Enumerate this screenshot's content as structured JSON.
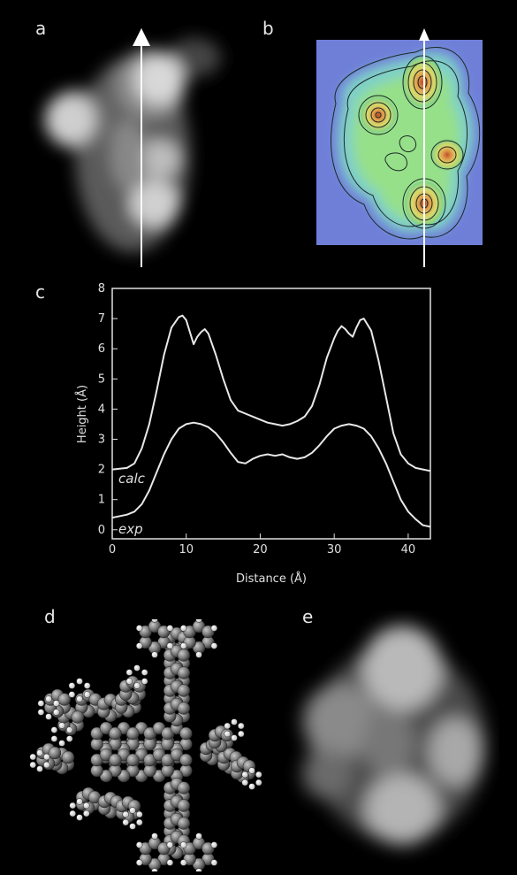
{
  "figure": {
    "panels": {
      "a": "a",
      "b": "b",
      "c": "c",
      "d": "d",
      "e": "e"
    }
  },
  "chart_data": {
    "type": "line",
    "title": "",
    "xlabel": "Distance (Å)",
    "ylabel": "Height (Å)",
    "xlim": [
      0,
      43
    ],
    "ylim": [
      -0.3,
      8
    ],
    "x_ticks": [
      "0",
      "10",
      "20",
      "30",
      "40"
    ],
    "y_ticks": [
      "0",
      "1",
      "2",
      "3",
      "4",
      "5",
      "6",
      "7",
      "8"
    ],
    "grid": false,
    "annotations": [
      "calc",
      "exp"
    ],
    "series": [
      {
        "name": "calc",
        "x": [
          0,
          2,
          3,
          4,
          5,
          6,
          7,
          8,
          9,
          9.5,
          10,
          10.5,
          11,
          11.5,
          12,
          12.5,
          13,
          14,
          15,
          16,
          17,
          18,
          19,
          20,
          21,
          22,
          23,
          24,
          25,
          26,
          27,
          28,
          29,
          30,
          30.5,
          31,
          31.5,
          32,
          32.5,
          33,
          33.5,
          34,
          35,
          36,
          37,
          38,
          39,
          40,
          41,
          42,
          43
        ],
        "values": [
          2.0,
          2.05,
          2.2,
          2.7,
          3.5,
          4.6,
          5.8,
          6.7,
          7.05,
          7.1,
          6.95,
          6.55,
          6.15,
          6.4,
          6.55,
          6.65,
          6.5,
          5.8,
          5.0,
          4.3,
          3.95,
          3.85,
          3.75,
          3.65,
          3.55,
          3.5,
          3.45,
          3.5,
          3.6,
          3.75,
          4.1,
          4.8,
          5.7,
          6.35,
          6.6,
          6.75,
          6.65,
          6.5,
          6.4,
          6.7,
          6.95,
          7.0,
          6.6,
          5.6,
          4.4,
          3.2,
          2.5,
          2.2,
          2.05,
          2.0,
          1.95
        ]
      },
      {
        "name": "exp",
        "x": [
          0,
          2,
          3,
          4,
          5,
          6,
          7,
          8,
          9,
          10,
          11,
          12,
          13,
          14,
          15,
          16,
          17,
          18,
          19,
          20,
          21,
          22,
          23,
          24,
          25,
          26,
          27,
          28,
          29,
          30,
          31,
          32,
          33,
          34,
          35,
          36,
          37,
          38,
          39,
          40,
          41,
          42,
          43
        ],
        "values": [
          0.4,
          0.5,
          0.6,
          0.85,
          1.3,
          1.9,
          2.5,
          3.0,
          3.35,
          3.5,
          3.55,
          3.5,
          3.4,
          3.2,
          2.9,
          2.55,
          2.25,
          2.2,
          2.35,
          2.45,
          2.5,
          2.45,
          2.5,
          2.4,
          2.35,
          2.4,
          2.55,
          2.8,
          3.1,
          3.35,
          3.45,
          3.5,
          3.45,
          3.35,
          3.1,
          2.7,
          2.2,
          1.6,
          1.0,
          0.6,
          0.35,
          0.15,
          0.1
        ]
      }
    ]
  }
}
